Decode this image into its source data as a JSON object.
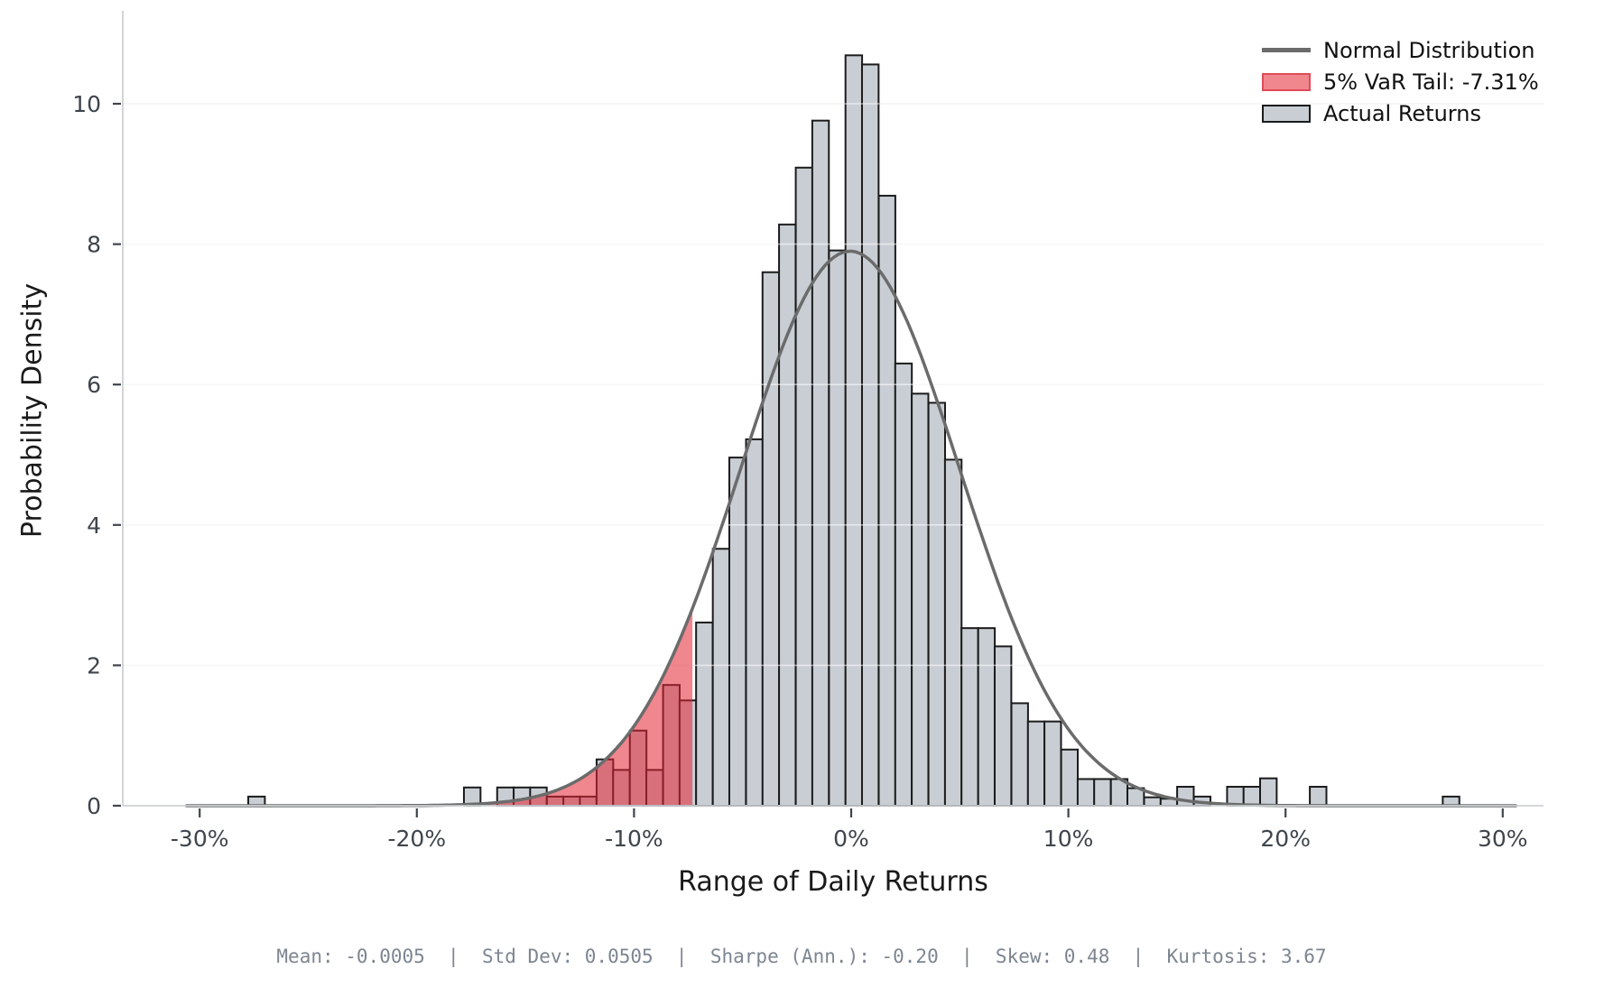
{
  "y_axis": {
    "label": "Probability Density",
    "ticks": [
      0,
      2,
      4,
      6,
      8,
      10
    ]
  },
  "x_axis": {
    "label": "Range of Daily Returns",
    "ticks": [
      {
        "value": -30,
        "label": "-30%"
      },
      {
        "value": -20,
        "label": "-20%"
      },
      {
        "value": -10,
        "label": "-10%"
      },
      {
        "value": 0,
        "label": "0%"
      },
      {
        "value": 10,
        "label": "10%"
      },
      {
        "value": 20,
        "label": "20%"
      },
      {
        "value": 30,
        "label": "30%"
      }
    ]
  },
  "legend": {
    "items": [
      {
        "label": "Normal Distribution",
        "swatch": "line",
        "color": "#6b6b6b",
        "edge": "#6b6b6b"
      },
      {
        "label": "5% VaR Tail: -7.31%",
        "swatch": "patch",
        "color": "#f0868e",
        "edge": "#e04a58"
      },
      {
        "label": "Actual Returns",
        "swatch": "patch",
        "color": "#c9ced5",
        "edge": "#1b1b1b"
      }
    ]
  },
  "footer": {
    "stats_text": "Mean: -0.0005  |  Std Dev: 0.0505  |  Sharpe (Ann.): -0.20  |  Skew: 0.48  |  Kurtosis: 3.67",
    "mean": "-0.0005",
    "std_dev": "0.0505",
    "sharpe_annualized": "-0.20",
    "skew": "0.48",
    "kurtosis": "3.67"
  },
  "colors": {
    "bar_fill": "#c9ced5",
    "bar_edge": "#1b1b1b",
    "var_fill": "rgba(228,35,50,0.55)",
    "curve": "#6b6b6b",
    "grid_under": "#e8e9ea",
    "grid_over": "rgba(255,255,255,0.55)",
    "spine": "#cdd0d4",
    "tick": "#3f454c",
    "tick_label": "#3f454c"
  },
  "chart_data": {
    "type": "bar",
    "subtype": "histogram with normal-distribution overlay and VaR tail highlight",
    "title": "",
    "xlabel": "Range of Daily Returns",
    "ylabel": "Probability Density",
    "x_units": "percent daily return",
    "xlim": [
      -33.6,
      31.9
    ],
    "ylim": [
      0,
      11.32
    ],
    "grid": "horizontal gridlines at y = 2,4,6,8,10",
    "legend_position": "upper right, frameless",
    "bin_width": 0.764,
    "bins": [
      [
        -27.38,
        0.13
      ],
      [
        -17.45,
        0.26
      ],
      [
        -15.92,
        0.26
      ],
      [
        -15.16,
        0.26
      ],
      [
        -14.4,
        0.26
      ],
      [
        -13.63,
        0.13
      ],
      [
        -12.87,
        0.13
      ],
      [
        -12.11,
        0.13
      ],
      [
        -11.34,
        0.66
      ],
      [
        -10.58,
        0.51
      ],
      [
        -9.81,
        1.07
      ],
      [
        -9.05,
        0.51
      ],
      [
        -8.28,
        1.72
      ],
      [
        -7.52,
        1.5
      ],
      [
        -6.76,
        2.61
      ],
      [
        -5.99,
        3.66
      ],
      [
        -5.23,
        4.96
      ],
      [
        -4.46,
        5.22
      ],
      [
        -3.7,
        7.6
      ],
      [
        -2.94,
        8.28
      ],
      [
        -2.17,
        9.09
      ],
      [
        -1.41,
        9.76
      ],
      [
        -0.64,
        7.91
      ],
      [
        0.12,
        10.69
      ],
      [
        0.88,
        10.56
      ],
      [
        1.65,
        8.69
      ],
      [
        2.41,
        6.3
      ],
      [
        3.17,
        5.87
      ],
      [
        3.94,
        5.74
      ],
      [
        4.7,
        4.93
      ],
      [
        5.46,
        2.53
      ],
      [
        6.23,
        2.53
      ],
      [
        6.99,
        2.27
      ],
      [
        7.76,
        1.46
      ],
      [
        8.52,
        1.2
      ],
      [
        9.28,
        1.2
      ],
      [
        10.05,
        0.8
      ],
      [
        10.81,
        0.38
      ],
      [
        11.57,
        0.38
      ],
      [
        12.34,
        0.38
      ],
      [
        13.1,
        0.25
      ],
      [
        13.87,
        0.12
      ],
      [
        14.63,
        0.1
      ],
      [
        15.39,
        0.27
      ],
      [
        16.16,
        0.13
      ],
      [
        17.69,
        0.27
      ],
      [
        18.45,
        0.27
      ],
      [
        19.21,
        0.39
      ],
      [
        21.5,
        0.27
      ],
      [
        27.62,
        0.13
      ]
    ],
    "normal_curve": {
      "mean": -0.05,
      "sigma": 5.05,
      "peak_density": 7.9,
      "draw_range": [
        -30.6,
        30.6
      ]
    },
    "var_threshold": -7.31,
    "var_tail_label": "5% VaR Tail: -7.31%"
  }
}
